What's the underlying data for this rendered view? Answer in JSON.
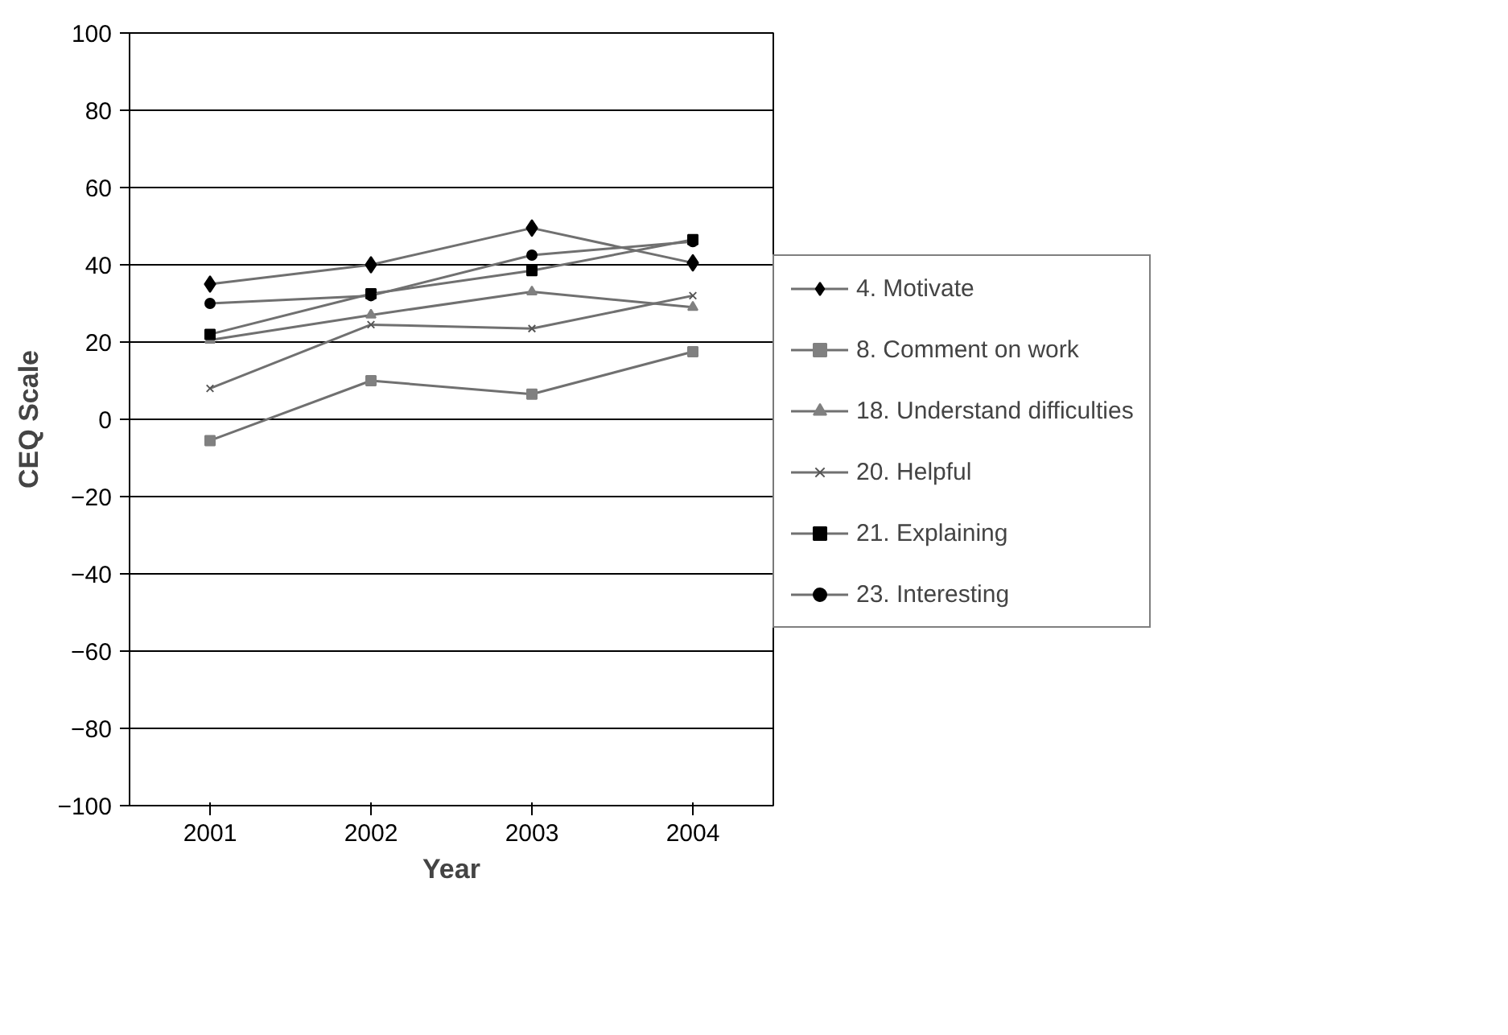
{
  "chart_data": {
    "type": "line",
    "xlabel": "Year",
    "ylabel": "CEQ Scale",
    "categories": [
      "2001",
      "2002",
      "2003",
      "2004"
    ],
    "series": [
      {
        "name": "4. Motivate",
        "color": "#000000",
        "marker": "diamond",
        "values": [
          35,
          40,
          49.5,
          40.5
        ]
      },
      {
        "name": "8. Comment on work",
        "color": "#808080",
        "marker": "square",
        "values": [
          -5.5,
          10,
          6.5,
          17.5
        ]
      },
      {
        "name": "18. Understand difficulties",
        "color": "#808080",
        "marker": "triangle",
        "values": [
          20.5,
          27,
          33,
          29
        ]
      },
      {
        "name": "20. Helpful",
        "color": "#555555",
        "marker": "cross",
        "values": [
          8,
          24.5,
          23.5,
          32
        ]
      },
      {
        "name": "21. Explaining",
        "color": "#000000",
        "marker": "square",
        "values": [
          22,
          32.5,
          38.5,
          46.5
        ]
      },
      {
        "name": "23. Interesting",
        "color": "#000000",
        "marker": "circle",
        "values": [
          30,
          32,
          42.5,
          46
        ]
      }
    ],
    "ylim": [
      -100,
      100
    ],
    "yticks": [
      -100,
      -80,
      -60,
      -40,
      -20,
      0,
      20,
      40,
      60,
      80,
      100
    ],
    "grid": "y",
    "legend": "right"
  }
}
